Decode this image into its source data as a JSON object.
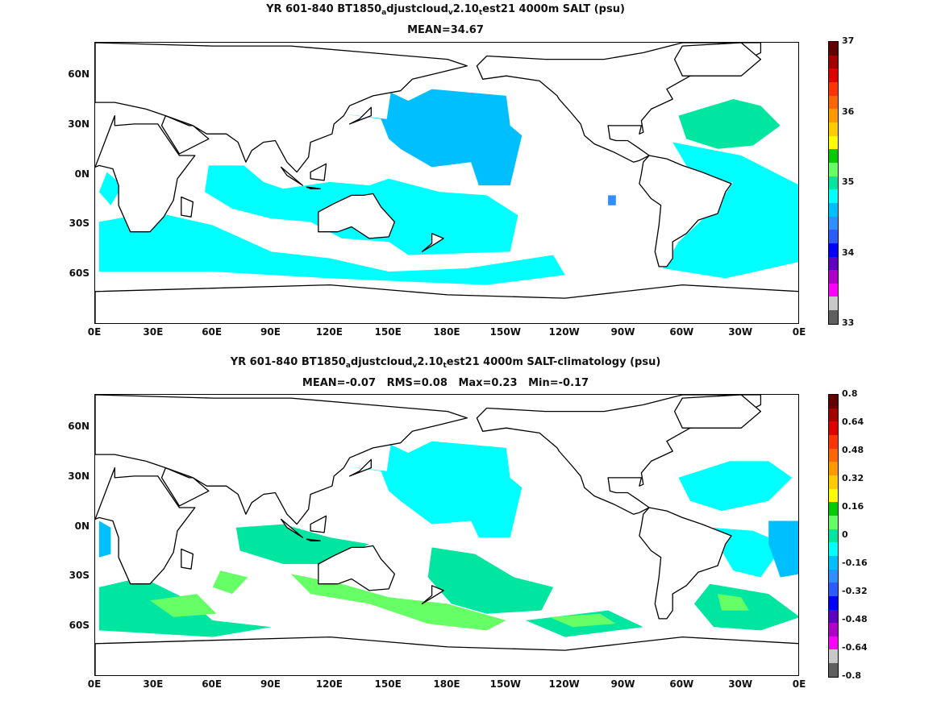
{
  "chart_data": [
    {
      "type": "heatmap",
      "title_parts": [
        "YR 601-840 BT1850",
        "a",
        "djustcloud",
        "v",
        "2.10",
        "t",
        "est21 4000m SALT (psu)"
      ],
      "subtitle": "MEAN=34.67",
      "x_ticks": [
        "0E",
        "30E",
        "60E",
        "90E",
        "120E",
        "150E",
        "180E",
        "150W",
        "120W",
        "90W",
        "60W",
        "30W",
        "0E"
      ],
      "y_ticks": [
        "60N",
        "30N",
        "0N",
        "30S",
        "60S"
      ],
      "xlim": [
        0,
        360
      ],
      "ylim": [
        -90,
        80
      ],
      "colorbar": {
        "range": [
          33,
          37
        ],
        "tick_labels": [
          "37",
          "36",
          "35",
          "34",
          "33"
        ],
        "colors": [
          "#630000",
          "#a50000",
          "#e00000",
          "#ff3300",
          "#ff6600",
          "#ff9900",
          "#ffcc00",
          "#ffff00",
          "#00cc00",
          "#66ff66",
          "#00e6a0",
          "#00ffff",
          "#00bfff",
          "#2f8fff",
          "#2c5cff",
          "#0000ff",
          "#6000c0",
          "#b000c8",
          "#ff00ff",
          "#c8c8c8",
          "#606060"
        ]
      },
      "series": [
        {
          "fill": "#00bfff",
          "points": [
            [
              127,
              37
            ],
            [
              149,
              34
            ],
            [
              151,
              50
            ],
            [
              160,
              45
            ],
            [
              172,
              52
            ],
            [
              210,
              48
            ],
            [
              212,
              30
            ],
            [
              218,
              24
            ],
            [
              212,
              -6
            ],
            [
              196,
              -6
            ],
            [
              192,
              8
            ],
            [
              172,
              5
            ],
            [
              156,
              16
            ],
            [
              150,
              22
            ],
            [
              146,
              34
            ]
          ]
        },
        {
          "fill": "#00ffff",
          "points": [
            [
              6,
              2
            ],
            [
              14,
              -6
            ],
            [
              8,
              -18
            ],
            [
              2,
              -10
            ]
          ]
        },
        {
          "fill": "#00ffff",
          "points": [
            [
              58,
              6
            ],
            [
              76,
              6
            ],
            [
              86,
              -4
            ],
            [
              96,
              -8
            ],
            [
              120,
              -4
            ],
            [
              140,
              -6
            ],
            [
              150,
              -2
            ],
            [
              176,
              -10
            ],
            [
              200,
              -12
            ],
            [
              216,
              -24
            ],
            [
              212,
              -46
            ],
            [
              160,
              -48
            ],
            [
              150,
              -40
            ],
            [
              126,
              -38
            ],
            [
              110,
              -28
            ],
            [
              90,
              -26
            ],
            [
              70,
              -20
            ],
            [
              56,
              -10
            ]
          ]
        },
        {
          "fill": "#00ffff",
          "points": [
            [
              2,
              -28
            ],
            [
              30,
              -22
            ],
            [
              60,
              -30
            ],
            [
              90,
              -46
            ],
            [
              120,
              -50
            ],
            [
              150,
              -58
            ],
            [
              190,
              -56
            ],
            [
              234,
              -48
            ],
            [
              240,
              -60
            ],
            [
              200,
              -66
            ],
            [
              120,
              -62
            ],
            [
              60,
              -58
            ],
            [
              2,
              -58
            ]
          ]
        },
        {
          "fill": "#00ffff",
          "points": [
            [
              295,
              20
            ],
            [
              330,
              12
            ],
            [
              350,
              0
            ],
            [
              360,
              -6
            ],
            [
              360,
              -52
            ],
            [
              322,
              -62
            ],
            [
              290,
              -56
            ],
            [
              298,
              -40
            ],
            [
              318,
              -18
            ],
            [
              326,
              -4
            ],
            [
              312,
              -8
            ],
            [
              302,
              6
            ]
          ]
        },
        {
          "fill": "#00e6a0",
          "points": [
            [
              298,
              36
            ],
            [
              326,
              46
            ],
            [
              340,
              42
            ],
            [
              350,
              30
            ],
            [
              336,
              18
            ],
            [
              318,
              16
            ],
            [
              302,
              22
            ]
          ]
        },
        {
          "fill": "#2f8fff",
          "points": [
            [
              262,
              -12
            ],
            [
              266,
              -12
            ],
            [
              266,
              -18
            ],
            [
              262,
              -18
            ]
          ]
        }
      ]
    },
    {
      "type": "heatmap",
      "title_parts": [
        "YR 601-840 BT1850",
        "a",
        "djustcloud",
        "v",
        "2.10",
        "t",
        "est21 4000m SALT-climatology (psu)"
      ],
      "subtitle": "MEAN=-0.07   RMS=0.08   Max=0.23   Min=-0.17",
      "x_ticks": [
        "0E",
        "30E",
        "60E",
        "90E",
        "120E",
        "150E",
        "180E",
        "150W",
        "120W",
        "90W",
        "60W",
        "30W",
        "0E"
      ],
      "y_ticks": [
        "60N",
        "30N",
        "0N",
        "30S",
        "60S"
      ],
      "xlim": [
        0,
        360
      ],
      "ylim": [
        -90,
        80
      ],
      "colorbar": {
        "range": [
          -0.8,
          0.8
        ],
        "tick_labels": [
          "0.8",
          "0.64",
          "0.48",
          "0.32",
          "0.16",
          "0",
          "-0.16",
          "-0.32",
          "-0.48",
          "-0.64",
          "-0.8"
        ],
        "colors": [
          "#630000",
          "#a50000",
          "#e00000",
          "#ff3300",
          "#ff6600",
          "#ff9900",
          "#ffcc00",
          "#ffff00",
          "#00cc00",
          "#66ff66",
          "#00e6a0",
          "#00ffff",
          "#00bfff",
          "#2f8fff",
          "#2c5cff",
          "#0000ff",
          "#6000c0",
          "#b000c8",
          "#ff00ff",
          "#c8c8c8",
          "#606060"
        ]
      },
      "series": [
        {
          "fill": "#00ffff",
          "points": [
            [
              127,
              37
            ],
            [
              149,
              34
            ],
            [
              151,
              50
            ],
            [
              160,
              45
            ],
            [
              172,
              52
            ],
            [
              210,
              48
            ],
            [
              212,
              30
            ],
            [
              218,
              24
            ],
            [
              212,
              -6
            ],
            [
              196,
              -6
            ],
            [
              192,
              4
            ],
            [
              172,
              2
            ],
            [
              156,
              16
            ],
            [
              150,
              22
            ],
            [
              146,
              34
            ]
          ]
        },
        {
          "fill": "#00bfff",
          "points": [
            [
              2,
              4
            ],
            [
              8,
              0
            ],
            [
              8,
              -16
            ],
            [
              2,
              -18
            ]
          ]
        },
        {
          "fill": "#00e6a0",
          "points": [
            [
              72,
              0
            ],
            [
              96,
              2
            ],
            [
              120,
              -6
            ],
            [
              140,
              -10
            ],
            [
              120,
              -22
            ],
            [
              96,
              -22
            ],
            [
              74,
              -14
            ]
          ]
        },
        {
          "fill": "#00e6a0",
          "points": [
            [
              172,
              -12
            ],
            [
              194,
              -16
            ],
            [
              214,
              -30
            ],
            [
              234,
              -36
            ],
            [
              228,
              -50
            ],
            [
              200,
              -52
            ],
            [
              182,
              -46
            ],
            [
              170,
              -30
            ]
          ]
        },
        {
          "fill": "#66ff66",
          "points": [
            [
              100,
              -28
            ],
            [
              126,
              -34
            ],
            [
              150,
              -42
            ],
            [
              180,
              -46
            ],
            [
              210,
              -56
            ],
            [
              200,
              -62
            ],
            [
              170,
              -58
            ],
            [
              140,
              -46
            ],
            [
              110,
              -40
            ]
          ]
        },
        {
          "fill": "#00e6a0",
          "points": [
            [
              2,
              -36
            ],
            [
              24,
              -30
            ],
            [
              48,
              -44
            ],
            [
              60,
              -56
            ],
            [
              90,
              -60
            ],
            [
              60,
              -66
            ],
            [
              2,
              -62
            ]
          ]
        },
        {
          "fill": "#66ff66",
          "points": [
            [
              28,
              -44
            ],
            [
              52,
              -40
            ],
            [
              62,
              -52
            ],
            [
              40,
              -54
            ]
          ]
        },
        {
          "fill": "#66ff66",
          "points": [
            [
              64,
              -26
            ],
            [
              78,
              -30
            ],
            [
              70,
              -40
            ],
            [
              60,
              -36
            ]
          ]
        },
        {
          "fill": "#00e6a0",
          "points": [
            [
              220,
              -56
            ],
            [
              262,
              -50
            ],
            [
              280,
              -60
            ],
            [
              240,
              -66
            ]
          ]
        },
        {
          "fill": "#66ff66",
          "points": [
            [
              232,
              -54
            ],
            [
              258,
              -52
            ],
            [
              266,
              -58
            ],
            [
              244,
              -60
            ]
          ]
        },
        {
          "fill": "#00ffff",
          "points": [
            [
              298,
              30
            ],
            [
              324,
              40
            ],
            [
              344,
              40
            ],
            [
              356,
              30
            ],
            [
              344,
              16
            ],
            [
              320,
              10
            ],
            [
              304,
              16
            ]
          ]
        },
        {
          "fill": "#00ffff",
          "points": [
            [
              314,
              0
            ],
            [
              336,
              -2
            ],
            [
              352,
              -10
            ],
            [
              340,
              -30
            ],
            [
              326,
              -26
            ],
            [
              318,
              -10
            ]
          ]
        },
        {
          "fill": "#00bfff",
          "points": [
            [
              344,
              4
            ],
            [
              360,
              4
            ],
            [
              360,
              -28
            ],
            [
              350,
              -30
            ],
            [
              344,
              -10
            ]
          ]
        },
        {
          "fill": "#00e6a0",
          "points": [
            [
              314,
              -34
            ],
            [
              344,
              -40
            ],
            [
              360,
              -54
            ],
            [
              340,
              -62
            ],
            [
              316,
              -60
            ],
            [
              306,
              -46
            ]
          ]
        },
        {
          "fill": "#66ff66",
          "points": [
            [
              318,
              -40
            ],
            [
              330,
              -42
            ],
            [
              334,
              -50
            ],
            [
              320,
              -50
            ]
          ]
        }
      ]
    }
  ]
}
